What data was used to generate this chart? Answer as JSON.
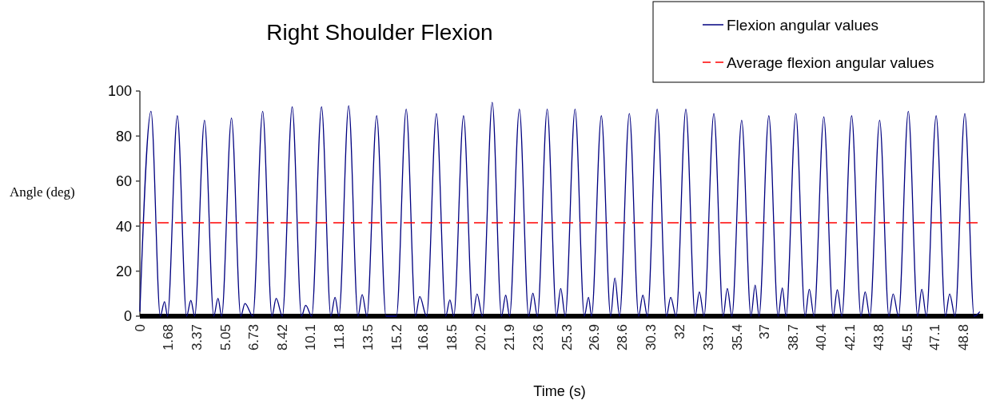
{
  "chart_data": {
    "type": "line",
    "title": "Right Shoulder Flexion",
    "xlabel": "Time (s)",
    "ylabel": "Angle (deg)",
    "xlim": [
      0,
      50
    ],
    "xticks": [
      0,
      1.68,
      3.37,
      5.05,
      6.73,
      8.42,
      10.1,
      11.8,
      13.5,
      15.2,
      16.8,
      18.5,
      20.2,
      21.9,
      23.6,
      25.3,
      26.9,
      28.6,
      30.3,
      32,
      33.7,
      35.4,
      37,
      38.7,
      40.4,
      42.1,
      43.8,
      45.5,
      47.1,
      48.8
    ],
    "ylim": [
      0,
      100
    ],
    "yticks": [
      0,
      20,
      40,
      60,
      80,
      100
    ],
    "grid": false,
    "legend": "top right",
    "series": [
      {
        "name": "Flexion angular values",
        "color": "#000080",
        "line_style": "solid",
        "x": [
          0,
          0.66,
          1.21,
          1.46,
          1.64,
          2.22,
          2.77,
          3.02,
          3.25,
          3.83,
          4.38,
          4.63,
          4.85,
          5.43,
          5.98,
          6.23,
          6.7,
          7.28,
          7.83,
          8.08,
          8.45,
          9.03,
          9.58,
          9.83,
          10.19,
          10.77,
          11.32,
          11.57,
          11.8,
          12.38,
          12.93,
          13.18,
          13.46,
          14.04,
          14.59,
          15.21,
          15.79,
          16.34,
          16.59,
          17.0,
          17.58,
          18.13,
          18.38,
          18.61,
          19.19,
          19.74,
          19.99,
          20.31,
          20.89,
          21.44,
          21.69,
          21.92,
          22.5,
          23.05,
          23.3,
          23.57,
          24.15,
          24.7,
          24.95,
          25.22,
          25.8,
          26.35,
          26.6,
          26.78,
          27.36,
          27.91,
          28.16,
          28.44,
          29.02,
          29.57,
          29.82,
          30.09,
          30.67,
          31.22,
          31.47,
          31.79,
          32.37,
          32.92,
          33.17,
          33.45,
          34.03,
          34.58,
          34.83,
          35.1,
          35.68,
          36.23,
          36.48,
          36.71,
          37.29,
          37.84,
          38.09,
          38.31,
          38.89,
          39.44,
          39.69,
          39.97,
          40.55,
          41.1,
          41.35,
          41.62,
          42.2,
          42.75,
          43.0,
          43.28,
          43.86,
          44.41,
          44.66,
          44.98,
          45.56,
          46.11,
          46.36,
          46.63,
          47.21,
          47.76,
          48.01,
          48.33,
          48.91,
          49.46,
          49.8
        ],
        "values": [
          2,
          91,
          0,
          6.4,
          0,
          89,
          0,
          7,
          0,
          87,
          0,
          7.9,
          0,
          88,
          0,
          5.6,
          0,
          91,
          0,
          7.9,
          0,
          93,
          0,
          4.8,
          0,
          93,
          0,
          8.4,
          0,
          93.5,
          0,
          9.6,
          0,
          89,
          0,
          0,
          92,
          0,
          8.7,
          0,
          90,
          0,
          7.2,
          0,
          89,
          0,
          9.9,
          0,
          95,
          0,
          9.3,
          0,
          92,
          0,
          10.2,
          0,
          92,
          0,
          12.3,
          0,
          92,
          0,
          8.4,
          0,
          89,
          0,
          17,
          0,
          90,
          0,
          9.3,
          0,
          92,
          0,
          8.4,
          0,
          92,
          0,
          10.8,
          0,
          90,
          0,
          12.3,
          0,
          87,
          0,
          13.8,
          0,
          89,
          0,
          12.5,
          0,
          90,
          0,
          11.9,
          0,
          88.5,
          0,
          11.7,
          0,
          89,
          0,
          10.8,
          0,
          87,
          0,
          9.9,
          0,
          91,
          0,
          11.9,
          0,
          89,
          0,
          9.9,
          0,
          90,
          0,
          2
        ]
      },
      {
        "name": "Average flexion angular values",
        "color": "#ff0000",
        "line_style": "dashed",
        "x": [
          0,
          50
        ],
        "values": [
          41.5,
          41.5
        ]
      }
    ]
  }
}
